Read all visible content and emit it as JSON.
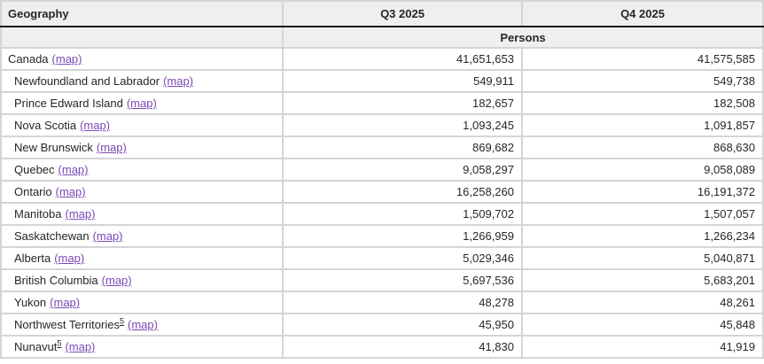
{
  "table": {
    "columns": {
      "geography": "Geography",
      "q3": "Q3 2025",
      "q4": "Q4 2025"
    },
    "subheader": "Persons",
    "map_label": "(map)",
    "rows": [
      {
        "name": "Canada",
        "footnote": "",
        "indent": false,
        "q3": "41,651,653",
        "q4": "41,575,585"
      },
      {
        "name": "Newfoundland and Labrador",
        "footnote": "",
        "indent": true,
        "q3": "549,911",
        "q4": "549,738"
      },
      {
        "name": "Prince Edward Island",
        "footnote": "",
        "indent": true,
        "q3": "182,657",
        "q4": "182,508"
      },
      {
        "name": "Nova Scotia",
        "footnote": "",
        "indent": true,
        "q3": "1,093,245",
        "q4": "1,091,857"
      },
      {
        "name": "New Brunswick",
        "footnote": "",
        "indent": true,
        "q3": "869,682",
        "q4": "868,630"
      },
      {
        "name": "Quebec",
        "footnote": "",
        "indent": true,
        "q3": "9,058,297",
        "q4": "9,058,089"
      },
      {
        "name": "Ontario",
        "footnote": "",
        "indent": true,
        "q3": "16,258,260",
        "q4": "16,191,372"
      },
      {
        "name": "Manitoba",
        "footnote": "",
        "indent": true,
        "q3": "1,509,702",
        "q4": "1,507,057"
      },
      {
        "name": "Saskatchewan",
        "footnote": "",
        "indent": true,
        "q3": "1,266,959",
        "q4": "1,266,234"
      },
      {
        "name": "Alberta",
        "footnote": "",
        "indent": true,
        "q3": "5,029,346",
        "q4": "5,040,871"
      },
      {
        "name": "British Columbia",
        "footnote": "",
        "indent": true,
        "q3": "5,697,536",
        "q4": "5,683,201"
      },
      {
        "name": "Yukon",
        "footnote": "",
        "indent": true,
        "q3": "48,278",
        "q4": "48,261"
      },
      {
        "name": "Northwest Territories",
        "footnote": "5",
        "indent": true,
        "q3": "45,950",
        "q4": "45,848"
      },
      {
        "name": "Nunavut",
        "footnote": "5",
        "indent": true,
        "q3": "41,830",
        "q4": "41,919"
      }
    ]
  },
  "colors": {
    "link_visited_purple": "#7a49b5",
    "header_background": "#efefef",
    "grid_border": "#d5d5d5",
    "header_underline": "#141414",
    "text": "#262626"
  }
}
